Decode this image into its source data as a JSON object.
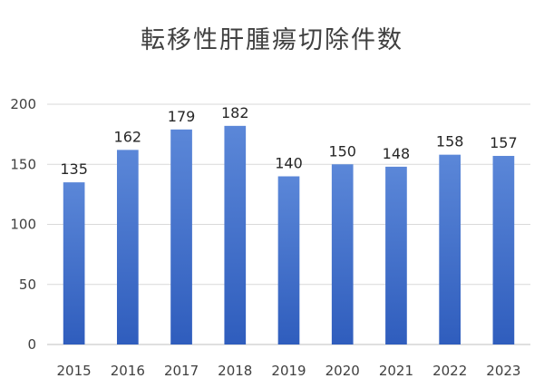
{
  "chart_data": {
    "type": "bar",
    "title": "転移性肝腫瘍切除件数",
    "xlabel": "",
    "ylabel": "",
    "categories": [
      "2015",
      "2016",
      "2017",
      "2018",
      "2019",
      "2020",
      "2021",
      "2022",
      "2023"
    ],
    "values": [
      135,
      162,
      179,
      182,
      140,
      150,
      148,
      158,
      157
    ],
    "ylim": [
      0,
      200
    ],
    "yticks": [
      0,
      50,
      100,
      150,
      200
    ],
    "grid": true,
    "legend": "none",
    "colors": {
      "bar_top": "#5b87d8",
      "bar_bottom": "#2f5dbd",
      "grid": "#d9d9d9",
      "axis": "#bfbfbf",
      "text": "#404040"
    }
  }
}
